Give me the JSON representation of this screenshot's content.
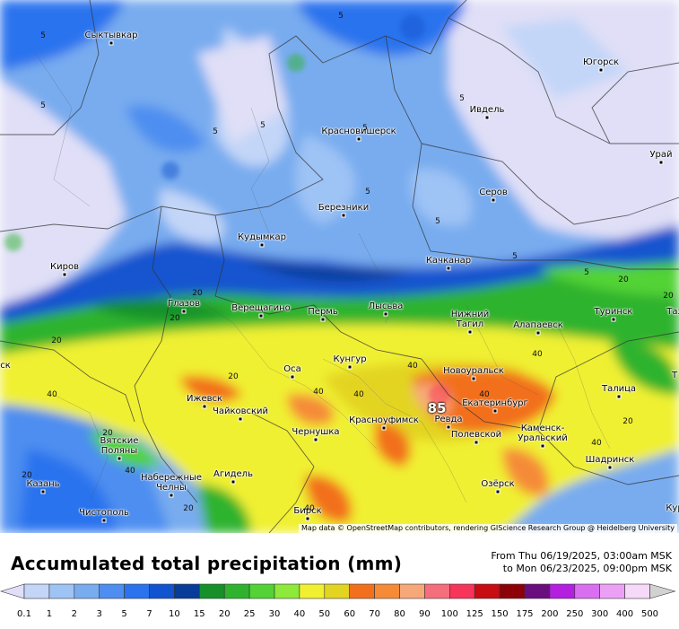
{
  "title": "Accumulated total precipitation (mm)",
  "period": {
    "from": "From Thu 06/19/2025, 03:00am MSK",
    "to": "to Mon 06/23/2025, 09:00pm MSK"
  },
  "attribution": "Map data © OpenStreetMap contributors, rendering GIScience Research Group @ Heidelberg University",
  "cities": [
    {
      "id": "syktyvkar",
      "name": "Сыктывкар"
    },
    {
      "id": "yugorsk",
      "name": "Югорск"
    },
    {
      "id": "ivdel",
      "name": "Ивдель"
    },
    {
      "id": "krasnovishersk",
      "name": "Красновишерск"
    },
    {
      "id": "uray",
      "name": "Урай"
    },
    {
      "id": "serov",
      "name": "Серов"
    },
    {
      "id": "berezniki",
      "name": "Березники"
    },
    {
      "id": "kudymkar",
      "name": "Кудымкар"
    },
    {
      "id": "kirov",
      "name": "Киров"
    },
    {
      "id": "kachkanar",
      "name": "Качканар"
    },
    {
      "id": "glazov",
      "name": "Глазов"
    },
    {
      "id": "vereshchagino",
      "name": "Верещагино"
    },
    {
      "id": "perm",
      "name": "Пермь"
    },
    {
      "id": "lysva",
      "name": "Лысьва"
    },
    {
      "id": "nizhny-tagil",
      "name": "Нижний\nТагил"
    },
    {
      "id": "turinsk",
      "name": "Туринск"
    },
    {
      "id": "alapaevsk",
      "name": "Алапаевск"
    },
    {
      "id": "osa",
      "name": "Оса"
    },
    {
      "id": "kungur",
      "name": "Кунгур"
    },
    {
      "id": "novouralsk",
      "name": "Новоуральск"
    },
    {
      "id": "izhevsk",
      "name": "Ижевск"
    },
    {
      "id": "chaykovsky",
      "name": "Чайковский"
    },
    {
      "id": "krasnoufimsk",
      "name": "Красноуфимск"
    },
    {
      "id": "revda",
      "name": "Ревда"
    },
    {
      "id": "ekaterinburg",
      "name": "Екатеринбург"
    },
    {
      "id": "talitsa",
      "name": "Талица"
    },
    {
      "id": "chernushka",
      "name": "Чернушка"
    },
    {
      "id": "polevskoy",
      "name": "Полевской"
    },
    {
      "id": "kamensk",
      "name": "Каменск-\nУральский"
    },
    {
      "id": "vyatskie-polyany",
      "name": "Вятские\nПоляны"
    },
    {
      "id": "kazan",
      "name": "Казань"
    },
    {
      "id": "naberezhnye",
      "name": "Набережные\nЧелны"
    },
    {
      "id": "agidel",
      "name": "Агидель"
    },
    {
      "id": "shadrinsk",
      "name": "Шадринск"
    },
    {
      "id": "ozersk",
      "name": "Озёрск"
    },
    {
      "id": "chistopol",
      "name": "Чистополь"
    },
    {
      "id": "birsk",
      "name": "Бирск"
    },
    {
      "id": "kur-partial",
      "name": "Кур"
    },
    {
      "id": "ta-partial",
      "name": "Таз"
    },
    {
      "id": "sk-partial",
      "name": "ск"
    },
    {
      "id": "t-partial",
      "name": "Т"
    }
  ],
  "contour_labels": [
    {
      "id": "c1",
      "value": "5"
    },
    {
      "id": "c2",
      "value": "5"
    },
    {
      "id": "c3",
      "value": "5"
    },
    {
      "id": "c4",
      "value": "5"
    },
    {
      "id": "c5",
      "value": "5"
    },
    {
      "id": "c6",
      "value": "5"
    },
    {
      "id": "c7",
      "value": "5"
    },
    {
      "id": "c8",
      "value": "5"
    },
    {
      "id": "c9",
      "value": "5"
    },
    {
      "id": "c10",
      "value": "5"
    },
    {
      "id": "c11",
      "value": "5"
    },
    {
      "id": "c12",
      "value": "20"
    },
    {
      "id": "c13",
      "value": "20"
    },
    {
      "id": "c14",
      "value": "20"
    },
    {
      "id": "c15",
      "value": "40"
    },
    {
      "id": "c16",
      "value": "40"
    },
    {
      "id": "c17",
      "value": "40"
    },
    {
      "id": "c18",
      "value": "40"
    },
    {
      "id": "c19",
      "value": "40"
    },
    {
      "id": "c20",
      "value": "40"
    },
    {
      "id": "c21",
      "value": "20"
    },
    {
      "id": "c22",
      "value": "40"
    },
    {
      "id": "c23",
      "value": "20"
    },
    {
      "id": "c24",
      "value": "20"
    },
    {
      "id": "c25",
      "value": "40"
    },
    {
      "id": "c26",
      "value": "20"
    },
    {
      "id": "c27",
      "value": "40"
    },
    {
      "id": "c28",
      "value": "20"
    },
    {
      "id": "c29",
      "value": "20"
    },
    {
      "id": "c30",
      "value": "20"
    },
    {
      "id": "max",
      "value": "85"
    }
  ],
  "legend": {
    "values": [
      "0.1",
      "1",
      "2",
      "3",
      "5",
      "7",
      "10",
      "15",
      "20",
      "25",
      "30",
      "40",
      "50",
      "60",
      "70",
      "80",
      "90",
      "100",
      "125",
      "150",
      "175",
      "200",
      "250",
      "300",
      "400",
      "500"
    ],
    "colors": [
      "#e0dff7",
      "#c3d6f8",
      "#9ec3f5",
      "#78acef",
      "#4d8ef0",
      "#2b73ee",
      "#1254cf",
      "#073c98",
      "#17902a",
      "#2fb32e",
      "#53d335",
      "#8de93a",
      "#f0f030",
      "#e3d422",
      "#f2701d",
      "#f58b37",
      "#f7a878",
      "#f56e7b",
      "#f7345a",
      "#c70c12",
      "#8e0008",
      "#6a0d7e",
      "#b41fe0",
      "#d96ff0",
      "#eba0f5",
      "#f6d9f8",
      "#d2d2d2"
    ]
  }
}
